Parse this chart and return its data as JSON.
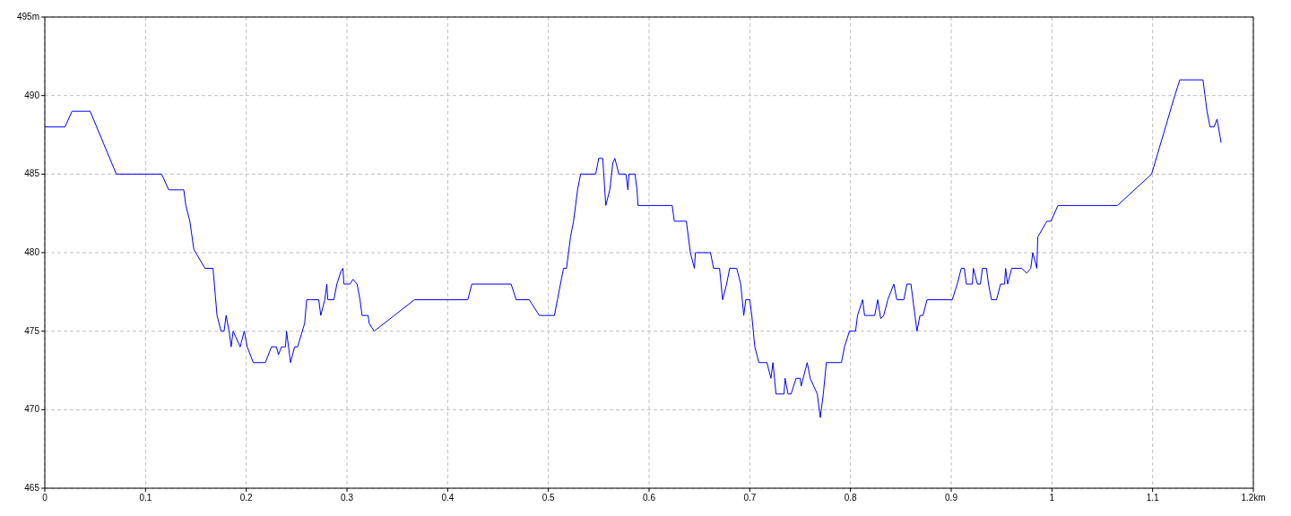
{
  "chart_data": {
    "type": "line",
    "x": [
      0,
      0.02,
      0.027,
      0.045,
      0.071,
      0.116,
      0.123,
      0.138,
      0.14,
      0.144,
      0.148,
      0.159,
      0.167,
      0.171,
      0.175,
      0.178,
      0.18,
      0.183,
      0.185,
      0.187,
      0.194,
      0.198,
      0.201,
      0.207,
      0.219,
      0.225,
      0.23,
      0.232,
      0.235,
      0.239,
      0.24,
      0.244,
      0.248,
      0.251,
      0.258,
      0.26,
      0.264,
      0.272,
      0.274,
      0.278,
      0.28,
      0.281,
      0.287,
      0.29,
      0.294,
      0.296,
      0.297,
      0.303,
      0.306,
      0.31,
      0.313,
      0.315,
      0.321,
      0.322,
      0.327,
      0.347,
      0.367,
      0.42,
      0.424,
      0.463,
      0.468,
      0.481,
      0.491,
      0.506,
      0.509,
      0.515,
      0.518,
      0.522,
      0.525,
      0.529,
      0.532,
      0.547,
      0.55,
      0.554,
      0.557,
      0.561,
      0.564,
      0.566,
      0.57,
      0.577,
      0.579,
      0.58,
      0.586,
      0.588,
      0.589,
      0.623,
      0.625,
      0.637,
      0.641,
      0.645,
      0.646,
      0.661,
      0.664,
      0.67,
      0.673,
      0.677,
      0.68,
      0.687,
      0.691,
      0.694,
      0.696,
      0.7,
      0.702,
      0.705,
      0.709,
      0.717,
      0.721,
      0.723,
      0.726,
      0.734,
      0.735,
      0.738,
      0.741,
      0.746,
      0.75,
      0.751,
      0.757,
      0.76,
      0.767,
      0.77,
      0.773,
      0.776,
      0.791,
      0.794,
      0.799,
      0.805,
      0.807,
      0.812,
      0.814,
      0.824,
      0.827,
      0.83,
      0.833,
      0.837,
      0.84,
      0.843,
      0.846,
      0.853,
      0.856,
      0.86,
      0.864,
      0.866,
      0.869,
      0.872,
      0.876,
      0.901,
      0.906,
      0.91,
      0.913,
      0.915,
      0.921,
      0.922,
      0.926,
      0.929,
      0.931,
      0.935,
      0.937,
      0.94,
      0.945,
      0.949,
      0.953,
      0.954,
      0.956,
      0.96,
      0.97,
      0.975,
      0.979,
      0.981,
      0.985,
      0.986,
      0.995,
      0.999,
      1.006,
      1.065,
      1.099,
      1.122,
      1.127,
      1.15,
      1.154,
      1.157,
      1.161,
      1.164,
      1.168
    ],
    "series": [
      {
        "color": "#0000ff",
        "values": [
          488,
          488,
          489,
          489,
          485,
          485,
          484,
          484,
          483,
          482,
          480.2,
          479,
          479,
          476,
          475,
          475,
          476,
          475,
          474,
          475,
          474,
          475,
          474,
          473,
          473,
          474,
          474,
          473.5,
          474,
          474,
          475,
          473,
          474,
          474,
          475.5,
          477,
          477,
          477,
          476,
          477,
          478,
          477,
          477,
          478,
          478.8,
          479,
          478,
          478,
          478.3,
          478,
          477,
          476,
          476,
          475.5,
          475,
          476,
          477,
          477,
          478,
          478,
          477,
          477,
          476,
          476,
          477,
          479,
          479,
          481,
          482,
          484,
          485,
          485,
          486,
          486,
          483,
          484,
          485.7,
          486,
          485,
          485,
          484,
          485,
          485,
          484,
          483,
          483,
          482,
          482,
          480,
          479,
          480,
          480,
          479,
          479,
          477,
          478,
          479,
          479,
          478,
          476,
          477,
          477,
          476,
          474,
          473,
          473,
          472,
          473,
          471,
          471,
          472,
          471,
          471,
          472,
          472,
          471.5,
          473,
          472,
          471,
          469.5,
          471,
          473,
          473,
          474,
          475,
          475,
          476,
          477,
          476,
          476,
          477,
          475.8,
          476,
          477,
          477.5,
          478,
          477,
          477,
          478,
          478,
          476,
          475,
          476,
          476,
          477,
          477,
          478,
          479,
          479,
          478,
          478,
          479,
          478,
          478,
          479,
          479,
          478,
          477,
          477,
          478,
          478,
          479,
          478,
          479,
          479,
          478.7,
          479,
          480,
          479,
          481,
          482,
          482,
          483,
          483,
          485,
          490,
          491,
          491,
          489,
          488,
          488,
          488.5,
          487
        ]
      }
    ],
    "xlim": [
      0,
      1.2
    ],
    "xticks": [
      0,
      0.1,
      0.2,
      0.3,
      0.4,
      0.5,
      0.6,
      0.7,
      0.8,
      0.9,
      1,
      1.1,
      {
        "value": 1.2,
        "label": "1.2km"
      }
    ],
    "ylim": [
      465,
      495
    ],
    "yticks": [
      465,
      470,
      475,
      480,
      485,
      490,
      {
        "value": 495,
        "label": "495m"
      }
    ],
    "grid": true,
    "marker": "none",
    "line_style": "solid"
  }
}
